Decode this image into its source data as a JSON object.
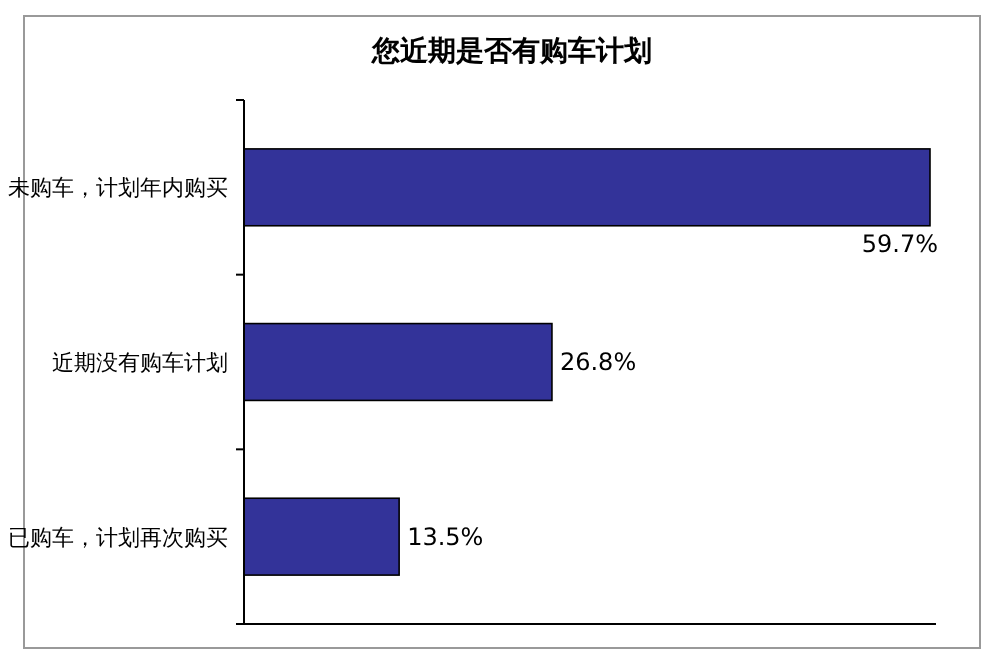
{
  "chart_data": {
    "type": "bar",
    "orientation": "horizontal",
    "title": "您近期是否有购车计划",
    "categories": [
      "未购车，计划年内购买",
      "近期没有购车计划",
      "已购车，计划再次购买"
    ],
    "values": [
      59.7,
      26.8,
      13.5
    ],
    "value_labels": [
      "59.7%",
      "26.8%",
      "13.5%"
    ],
    "color": "#333399"
  }
}
